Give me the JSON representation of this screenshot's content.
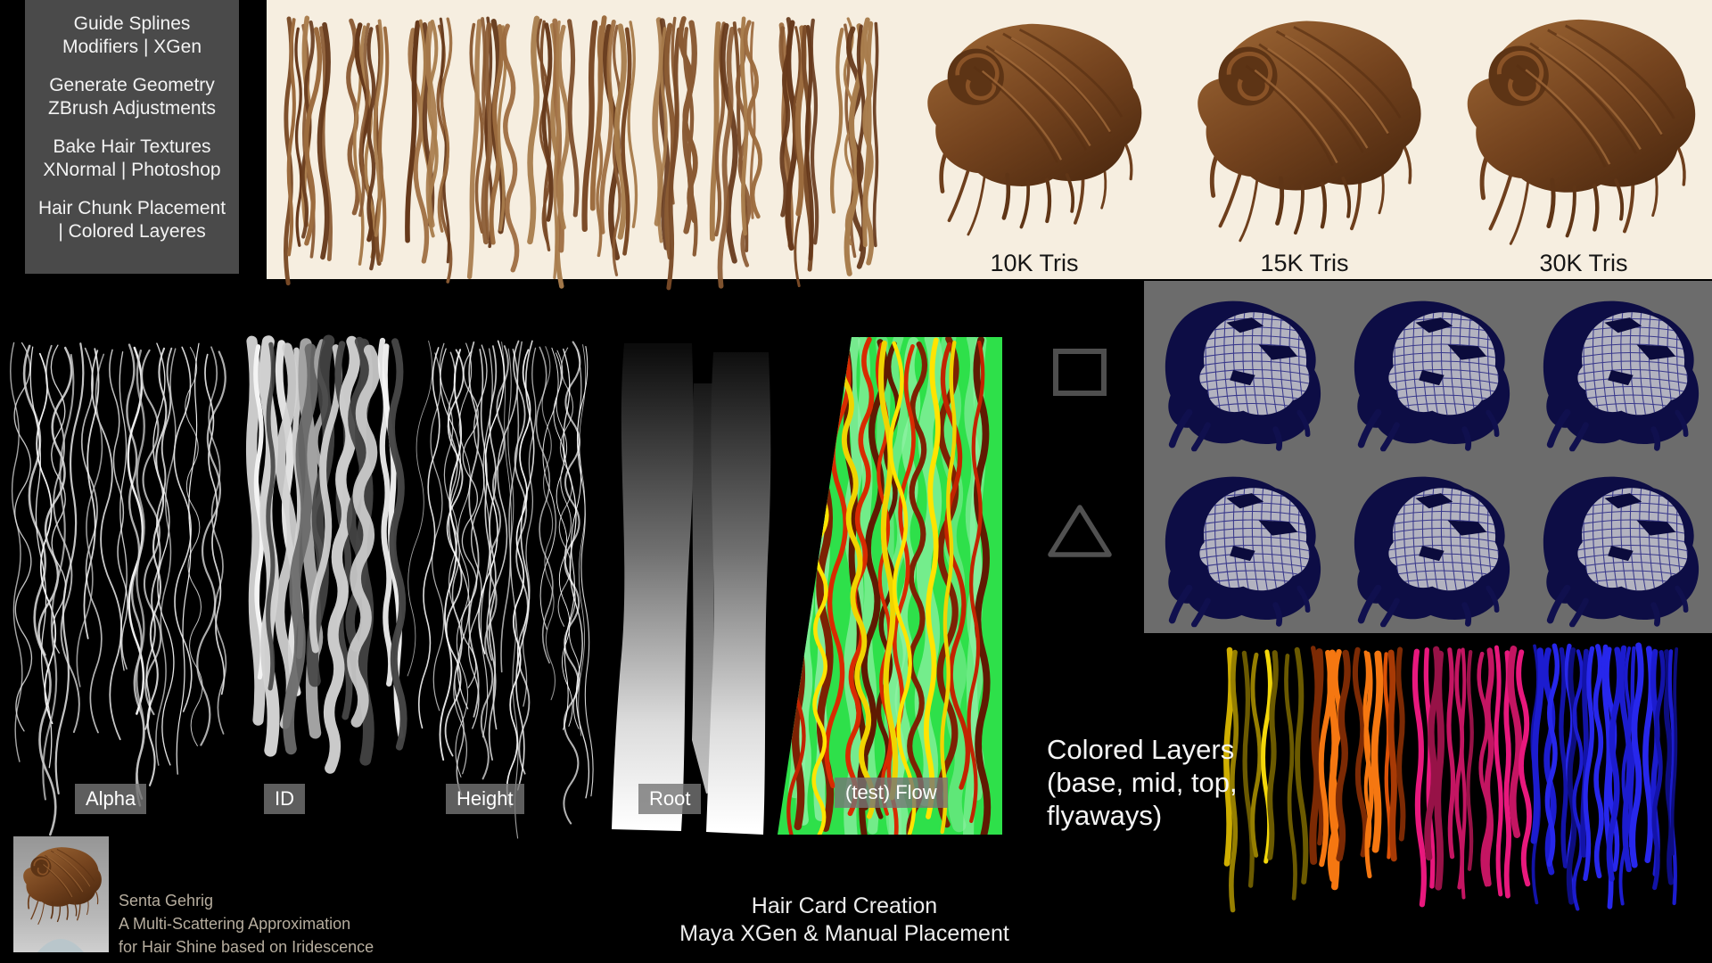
{
  "workflow_panel": {
    "steps": [
      {
        "line1": "Guide Splines",
        "line2": "Modifiers | XGen"
      },
      {
        "line1": "Generate Geometry",
        "line2": "ZBrush Adjustments"
      },
      {
        "line1": "Bake Hair Textures",
        "line2": "XNormal | Photoshop"
      },
      {
        "line1": "Hair Chunk Placement",
        "line2": "| Colored Layeres"
      }
    ]
  },
  "tris_labels": [
    {
      "text": "10K Tris"
    },
    {
      "text": "15K Tris"
    },
    {
      "text": "30K Tris"
    }
  ],
  "texture_labels": [
    {
      "id": "alpha",
      "text": "Alpha"
    },
    {
      "id": "id",
      "text": "ID"
    },
    {
      "id": "height",
      "text": "Height"
    },
    {
      "id": "root",
      "text": "Root"
    },
    {
      "id": "flow",
      "text": "(test) Flow"
    }
  ],
  "colored_layers_caption": {
    "line1": "Colored Layers",
    "line2": "(base, mid, top,",
    "line3": "flyaways)"
  },
  "credit": {
    "name": "Senta Gehrig",
    "line2": "A Multi-Scattering Approximation",
    "line3": "for Hair Shine based on Iridescence"
  },
  "footer": {
    "line1": "Hair Card Creation",
    "line2": "Maya XGen & Manual Placement"
  },
  "icons": [
    {
      "name": "square-icon"
    },
    {
      "name": "triangle-icon"
    }
  ],
  "colors": {
    "background": "#000000",
    "workflow_panel_gray": "#4a4a4a",
    "wireframe_panel_gray": "#6c6c6c",
    "cream": "#f6eee0",
    "flow_green": "#2ee04a",
    "label_chip_gray": "#767676",
    "hair_brown": "#7c4a26",
    "wireframe_navy": "#14145e",
    "layer_yellow": "#f0d500",
    "layer_orange": "#ec6a0e",
    "layer_magenta": "#d8156e",
    "layer_blue": "#1d1dd6"
  }
}
